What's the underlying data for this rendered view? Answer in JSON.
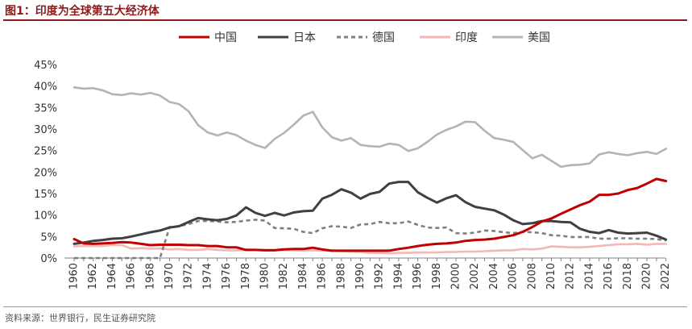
{
  "header": {
    "title": "图1：印度为全球第五大经济体"
  },
  "footer": {
    "source": "资料来源：世界银行，民生证券研究院"
  },
  "chart_data": {
    "type": "line",
    "title": "图1：印度为全球第五大经济体",
    "xlabel": "",
    "ylabel": "",
    "ylim": [
      0,
      45
    ],
    "ytick_values": [
      0,
      5,
      10,
      15,
      20,
      25,
      30,
      35,
      40,
      45
    ],
    "ytick_labels": [
      "0%",
      "5%",
      "10%",
      "15%",
      "20%",
      "25%",
      "30%",
      "35%",
      "40%",
      "45%"
    ],
    "x": [
      1960,
      1961,
      1962,
      1963,
      1964,
      1965,
      1966,
      1967,
      1968,
      1969,
      1970,
      1971,
      1972,
      1973,
      1974,
      1975,
      1976,
      1977,
      1978,
      1979,
      1980,
      1981,
      1982,
      1983,
      1984,
      1985,
      1986,
      1987,
      1988,
      1989,
      1990,
      1991,
      1992,
      1993,
      1994,
      1995,
      1996,
      1997,
      1998,
      1999,
      2000,
      2001,
      2002,
      2003,
      2004,
      2005,
      2006,
      2007,
      2008,
      2009,
      2010,
      2011,
      2012,
      2013,
      2014,
      2015,
      2016,
      2017,
      2018,
      2019,
      2020,
      2021,
      2022
    ],
    "xtick_labels": [
      "1960",
      "1962",
      "1964",
      "1966",
      "1968",
      "1970",
      "1972",
      "1974",
      "1976",
      "1978",
      "1980",
      "1982",
      "1984",
      "1986",
      "1988",
      "1990",
      "1992",
      "1994",
      "1996",
      "1998",
      "2000",
      "2002",
      "2004",
      "2006",
      "2008",
      "2010",
      "2012",
      "2014",
      "2016",
      "2018",
      "2020",
      "2022"
    ],
    "legend_position": "top-center",
    "grid": false,
    "series": [
      {
        "name": "中国",
        "color": "#c00000",
        "dashed": false,
        "values": [
          4.4,
          3.4,
          3.3,
          3.4,
          3.5,
          3.7,
          3.6,
          3.3,
          3.0,
          3.1,
          3.1,
          3.1,
          3.0,
          3.0,
          2.8,
          2.8,
          2.5,
          2.5,
          1.9,
          1.9,
          1.8,
          1.8,
          2.0,
          2.1,
          2.1,
          2.4,
          2.0,
          1.7,
          1.7,
          1.7,
          1.7,
          1.7,
          1.7,
          1.7,
          2.1,
          2.4,
          2.8,
          3.1,
          3.3,
          3.4,
          3.6,
          4.0,
          4.2,
          4.3,
          4.5,
          4.9,
          5.3,
          6.1,
          7.2,
          8.5,
          9.2,
          10.3,
          11.3,
          12.3,
          13.1,
          14.7,
          14.7,
          15.0,
          15.8,
          16.3,
          17.3,
          18.4,
          17.9
        ]
      },
      {
        "name": "日本",
        "color": "#404040",
        "dashed": false,
        "values": [
          3.3,
          3.6,
          4.0,
          4.2,
          4.5,
          4.6,
          5.0,
          5.5,
          6.0,
          6.4,
          7.1,
          7.4,
          8.4,
          9.3,
          9.0,
          8.8,
          9.1,
          9.9,
          11.8,
          10.5,
          9.8,
          10.5,
          9.9,
          10.6,
          10.9,
          11.0,
          13.8,
          14.7,
          16.0,
          15.2,
          13.8,
          14.9,
          15.4,
          17.3,
          17.7,
          17.7,
          15.3,
          14.0,
          12.9,
          13.9,
          14.6,
          13.0,
          11.9,
          11.5,
          11.1,
          10.1,
          8.8,
          7.9,
          8.1,
          8.6,
          8.6,
          8.4,
          8.3,
          6.8,
          6.1,
          5.8,
          6.5,
          5.9,
          5.7,
          5.8,
          5.9,
          5.2,
          4.3
        ]
      },
      {
        "name": "德国",
        "color": "#7f7f7f",
        "dashed": true,
        "values": [
          0,
          0,
          0,
          0,
          0,
          0,
          0,
          0,
          0,
          0,
          7.2,
          7.4,
          7.9,
          8.6,
          8.6,
          8.5,
          8.3,
          8.4,
          8.7,
          8.9,
          8.7,
          7.0,
          6.9,
          6.8,
          6.1,
          5.8,
          6.9,
          7.4,
          7.3,
          7.0,
          7.8,
          7.9,
          8.4,
          8.1,
          8.1,
          8.5,
          7.7,
          7.1,
          7.0,
          7.1,
          5.8,
          5.7,
          5.9,
          6.4,
          6.3,
          6.0,
          5.8,
          6.1,
          6.0,
          5.8,
          5.3,
          5.2,
          4.9,
          4.9,
          4.9,
          4.5,
          4.5,
          4.6,
          4.6,
          4.5,
          4.5,
          4.4,
          4.1
        ]
      },
      {
        "name": "印度",
        "color": "#f4b6b6",
        "dashed": false,
        "values": [
          2.7,
          2.8,
          2.8,
          2.8,
          3.0,
          3.0,
          2.2,
          2.3,
          2.2,
          2.2,
          2.0,
          2.1,
          1.9,
          1.9,
          2.1,
          1.9,
          1.8,
          1.8,
          1.9,
          1.9,
          1.9,
          1.9,
          1.9,
          1.8,
          1.7,
          1.8,
          1.7,
          1.7,
          1.6,
          1.5,
          1.4,
          1.2,
          1.2,
          1.1,
          1.2,
          1.2,
          1.3,
          1.3,
          1.3,
          1.4,
          1.4,
          1.5,
          1.5,
          1.6,
          1.7,
          1.8,
          1.8,
          2.1,
          2.0,
          2.2,
          2.7,
          2.6,
          2.5,
          2.5,
          2.6,
          2.8,
          3.0,
          3.2,
          3.2,
          3.3,
          3.1,
          3.3,
          3.3
        ]
      },
      {
        "name": "美国",
        "color": "#b4b4b4",
        "dashed": false,
        "values": [
          39.7,
          39.4,
          39.5,
          39.0,
          38.1,
          37.9,
          38.3,
          38.0,
          38.4,
          37.8,
          36.3,
          35.8,
          34.1,
          30.9,
          29.2,
          28.5,
          29.2,
          28.6,
          27.3,
          26.3,
          25.6,
          27.7,
          29.1,
          31.0,
          33.1,
          34.0,
          30.4,
          28.1,
          27.3,
          27.9,
          26.3,
          26.0,
          25.9,
          26.6,
          26.3,
          24.9,
          25.5,
          27.0,
          28.7,
          29.8,
          30.6,
          31.7,
          31.6,
          29.6,
          27.9,
          27.5,
          27.0,
          25.1,
          23.2,
          24.0,
          22.6,
          21.2,
          21.6,
          21.7,
          22.0,
          24.1,
          24.6,
          24.2,
          23.9,
          24.4,
          24.7,
          24.2,
          25.4
        ]
      }
    ]
  }
}
